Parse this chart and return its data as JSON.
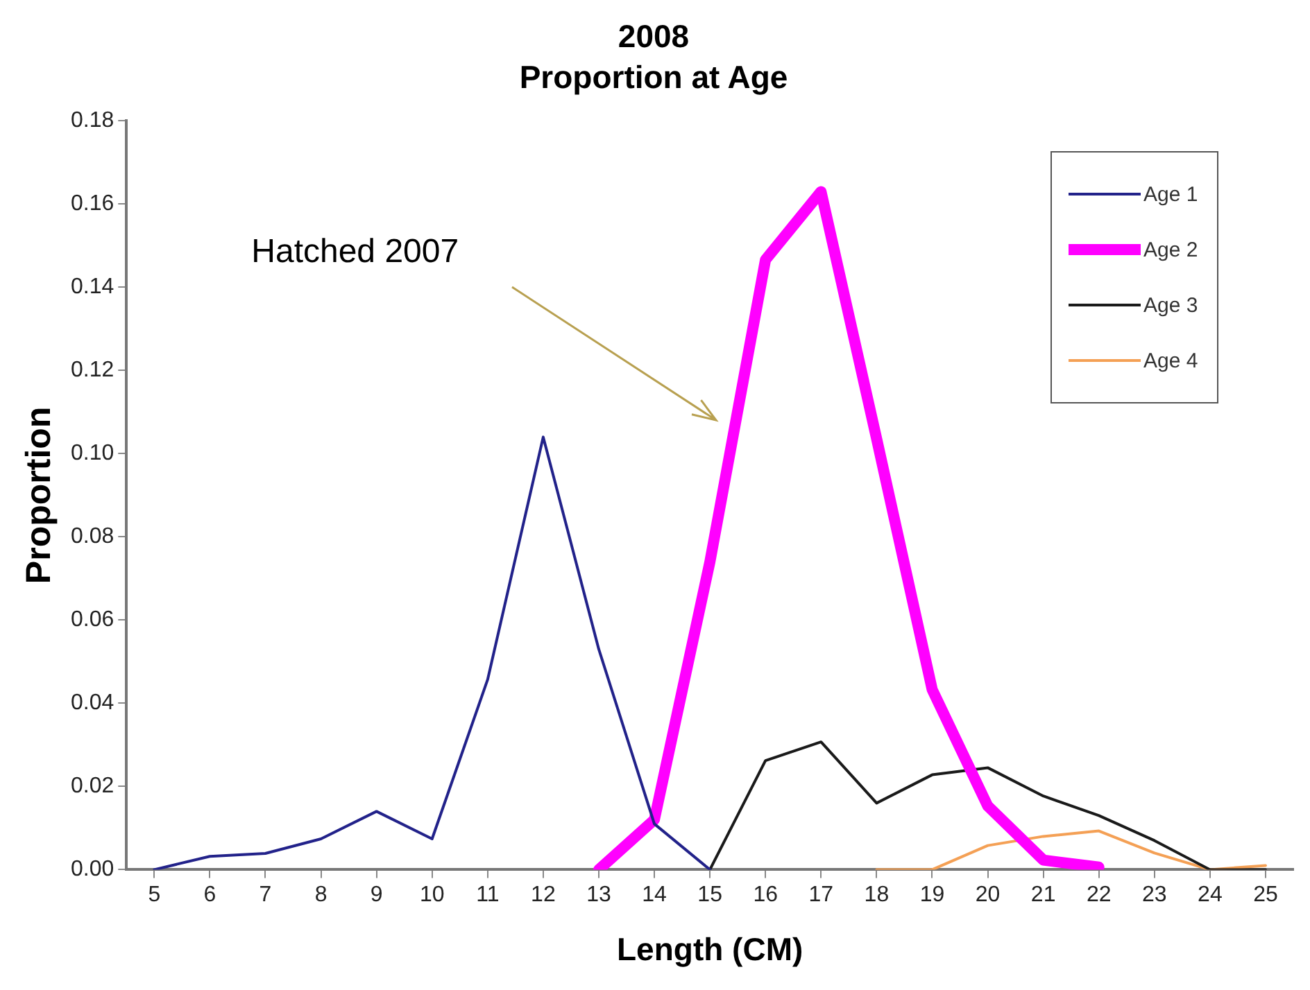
{
  "chart_data": {
    "type": "line",
    "title": "2008",
    "subtitle": "Proportion at Age",
    "xlabel": "Length (CM)",
    "ylabel": "Proportion",
    "categories": [
      "5",
      "6",
      "7",
      "8",
      "9",
      "10",
      "11",
      "12",
      "13",
      "14",
      "15",
      "16",
      "17",
      "18",
      "19",
      "20",
      "21",
      "22",
      "23",
      "24",
      "25"
    ],
    "series": [
      {
        "name": "Age 1",
        "color": "#22228a",
        "values": [
          0,
          0.0032,
          0.0039,
          0.0074,
          0.014,
          0.0074,
          0.0457,
          0.104,
          0.053,
          0.011,
          0,
          null,
          null,
          null,
          null,
          null,
          null,
          null,
          null,
          null,
          null
        ]
      },
      {
        "name": "Age 2",
        "color": "#ff00ff",
        "values": [
          null,
          null,
          null,
          null,
          null,
          null,
          null,
          null,
          0,
          0.012,
          0.074,
          0.1466,
          0.163,
          0.1036,
          0.0433,
          0.0153,
          0.0023,
          0.0006,
          null,
          null,
          null
        ]
      },
      {
        "name": "Age 3",
        "color": "#1a1a1a",
        "values": [
          null,
          null,
          null,
          null,
          null,
          null,
          null,
          null,
          null,
          null,
          0,
          0.0262,
          0.0307,
          0.016,
          0.0228,
          0.0245,
          0.0177,
          0.013,
          0.007,
          0,
          0
        ]
      },
      {
        "name": "Age 4",
        "color": "#f4a055",
        "values": [
          null,
          null,
          null,
          null,
          null,
          null,
          null,
          null,
          null,
          null,
          null,
          null,
          null,
          0,
          0,
          0.0058,
          0.008,
          0.0093,
          0.004,
          0,
          0.001
        ]
      }
    ],
    "ylim": [
      0,
      0.18
    ],
    "yticks": [
      {
        "value": 0,
        "label": "0.00"
      },
      {
        "value": 0.02,
        "label": "0.02"
      },
      {
        "value": 0.04,
        "label": "0.04"
      },
      {
        "value": 0.06,
        "label": "0.06"
      },
      {
        "value": 0.08,
        "label": "0.08"
      },
      {
        "value": 0.1,
        "label": "0.10"
      },
      {
        "value": 0.12,
        "label": "0.12"
      },
      {
        "value": 0.14,
        "label": "0.14"
      },
      {
        "value": 0.16,
        "label": "0.16"
      },
      {
        "value": 0.18,
        "label": "0.18"
      }
    ],
    "annotations": [
      "Hatched 2007"
    ],
    "grid": false,
    "legend": "top right",
    "marker": "none",
    "line_style": "solid"
  }
}
